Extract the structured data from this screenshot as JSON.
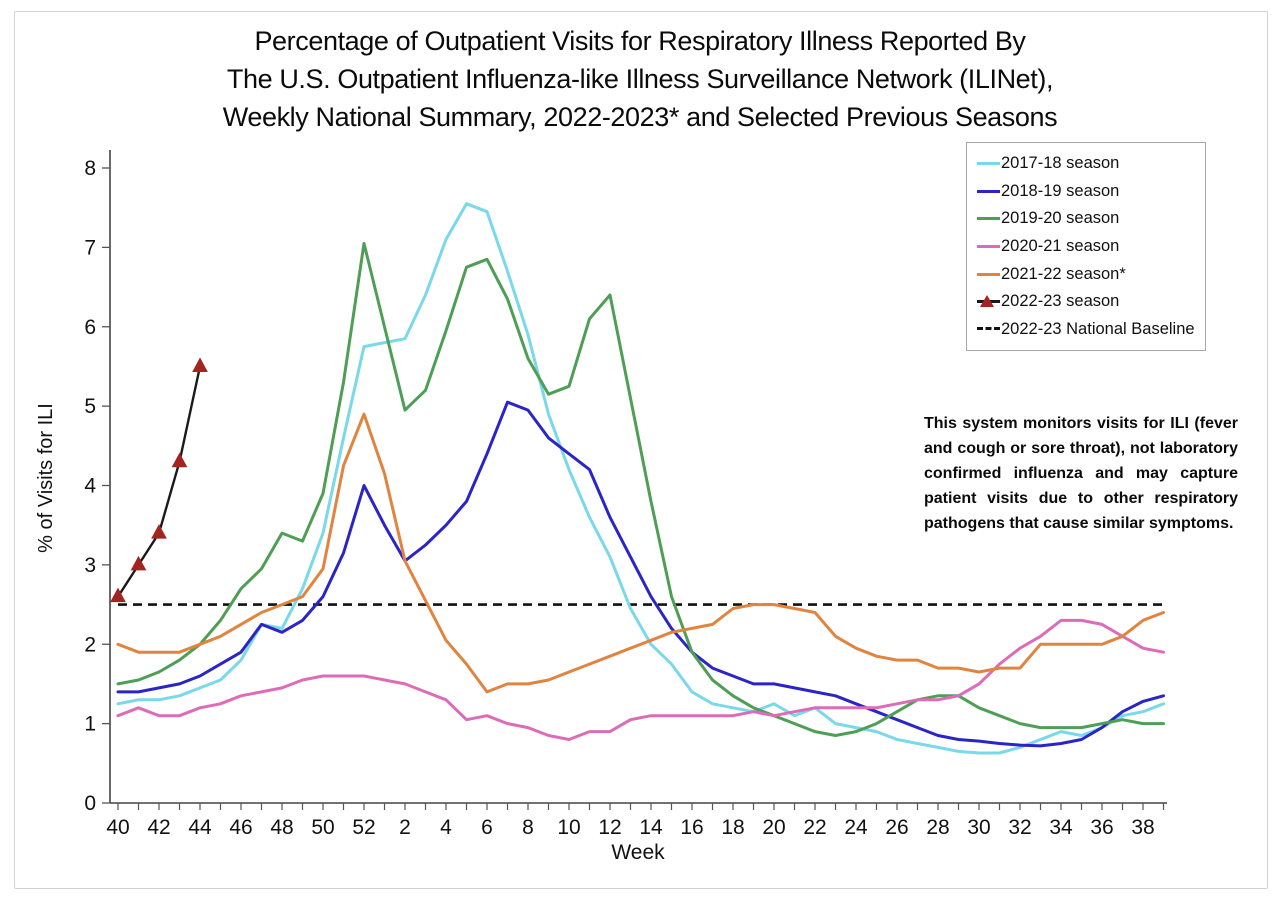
{
  "title": {
    "line1": "Percentage of Outpatient Visits for Respiratory Illness Reported By",
    "line2": "The U.S. Outpatient Influenza-like Illness Surveillance Network (ILINet),",
    "line3": "Weekly National Summary, 2022-2023* and Selected Previous Seasons"
  },
  "annotation": {
    "text": "This system monitors visits for ILI (fever and cough or sore throat), not laboratory confirmed influenza and may capture patient visits due to other respiratory pathogens that cause similar symptoms."
  },
  "chart_data": {
    "type": "line",
    "title": "Percentage of Outpatient Visits for Respiratory Illness Reported By The U.S. Outpatient Influenza-like Illness Surveillance Network (ILINet), Weekly National Summary, 2022-2023* and Selected Previous Seasons",
    "xlabel": "Week",
    "ylabel": "% of Visits for ILI",
    "ylim": [
      0,
      8
    ],
    "grid": false,
    "legend_position": "top-right",
    "y_ticks": [
      "0",
      "1",
      "2",
      "3",
      "4",
      "5",
      "6",
      "7",
      "8"
    ],
    "x_tick_labels": [
      "40",
      "42",
      "44",
      "46",
      "48",
      "50",
      "52",
      "2",
      "4",
      "6",
      "8",
      "10",
      "12",
      "14",
      "16",
      "18",
      "20",
      "22",
      "24",
      "26",
      "28",
      "30",
      "32",
      "34",
      "36",
      "38"
    ],
    "weeks": [
      40,
      41,
      42,
      43,
      44,
      45,
      46,
      47,
      48,
      49,
      50,
      51,
      52,
      1,
      2,
      3,
      4,
      5,
      6,
      7,
      8,
      9,
      10,
      11,
      12,
      13,
      14,
      15,
      16,
      17,
      18,
      19,
      20,
      21,
      22,
      23,
      24,
      25,
      26,
      27,
      28,
      29,
      30,
      31,
      32,
      33,
      34,
      35,
      36,
      37,
      38,
      39
    ],
    "baseline": {
      "label": "2022-23 National Baseline",
      "value": 2.5,
      "color": "#111111",
      "style": "dashed"
    },
    "series": [
      {
        "name": "2017-18 season",
        "color": "#79d9ea",
        "values": [
          1.25,
          1.3,
          1.3,
          1.35,
          1.45,
          1.55,
          1.8,
          2.25,
          2.2,
          2.7,
          3.4,
          4.6,
          5.75,
          5.8,
          5.85,
          6.4,
          7.1,
          7.55,
          7.45,
          6.7,
          5.9,
          4.9,
          4.2,
          3.6,
          3.1,
          2.45,
          2.0,
          1.75,
          1.4,
          1.25,
          1.2,
          1.15,
          1.25,
          1.1,
          1.2,
          1.0,
          0.95,
          0.9,
          0.8,
          0.75,
          0.7,
          0.65,
          0.63,
          0.63,
          0.7,
          0.8,
          0.9,
          0.85,
          0.95,
          1.1,
          1.15,
          1.25
        ]
      },
      {
        "name": "2018-19 season",
        "color": "#2b24c6",
        "values": [
          1.4,
          1.4,
          1.45,
          1.5,
          1.6,
          1.75,
          1.9,
          2.25,
          2.15,
          2.3,
          2.6,
          3.15,
          4.0,
          3.5,
          3.05,
          3.25,
          3.5,
          3.8,
          4.4,
          5.05,
          4.95,
          4.6,
          4.4,
          4.2,
          3.6,
          3.1,
          2.6,
          2.2,
          1.9,
          1.7,
          1.6,
          1.5,
          1.5,
          1.45,
          1.4,
          1.35,
          1.25,
          1.15,
          1.05,
          0.95,
          0.85,
          0.8,
          0.78,
          0.75,
          0.73,
          0.72,
          0.75,
          0.8,
          0.95,
          1.15,
          1.28,
          1.35
        ]
      },
      {
        "name": "2019-20 season",
        "color": "#4f9e55",
        "values": [
          1.5,
          1.55,
          1.65,
          1.8,
          2.0,
          2.3,
          2.7,
          2.95,
          3.4,
          3.3,
          3.9,
          5.3,
          7.05,
          6.0,
          4.95,
          5.2,
          5.95,
          6.75,
          6.85,
          6.35,
          5.6,
          5.15,
          5.25,
          6.1,
          6.4,
          5.1,
          3.8,
          2.6,
          1.9,
          1.55,
          1.35,
          1.2,
          1.1,
          1.0,
          0.9,
          0.85,
          0.9,
          1.0,
          1.15,
          1.3,
          1.35,
          1.35,
          1.2,
          1.1,
          1.0,
          0.95,
          0.95,
          0.95,
          1.0,
          1.05,
          1.0,
          1.0
        ]
      },
      {
        "name": "2020-21 season",
        "color": "#dd6cb8",
        "values": [
          1.1,
          1.2,
          1.1,
          1.1,
          1.2,
          1.25,
          1.35,
          1.4,
          1.45,
          1.55,
          1.6,
          1.6,
          1.6,
          1.55,
          1.5,
          1.4,
          1.3,
          1.05,
          1.1,
          1.0,
          0.95,
          0.85,
          0.8,
          0.9,
          0.9,
          1.05,
          1.1,
          1.1,
          1.1,
          1.1,
          1.1,
          1.15,
          1.1,
          1.15,
          1.2,
          1.2,
          1.2,
          1.2,
          1.25,
          1.3,
          1.3,
          1.35,
          1.5,
          1.75,
          1.95,
          2.1,
          2.3,
          2.3,
          2.25,
          2.1,
          1.95,
          1.9
        ]
      },
      {
        "name": "2021-22 season*",
        "color": "#e08440",
        "values": [
          2.0,
          1.9,
          1.9,
          1.9,
          2.0,
          2.1,
          2.25,
          2.4,
          2.5,
          2.6,
          2.95,
          4.25,
          4.9,
          4.15,
          3.05,
          2.55,
          2.05,
          1.75,
          1.4,
          1.5,
          1.5,
          1.55,
          1.65,
          1.75,
          1.85,
          1.95,
          2.05,
          2.15,
          2.2,
          2.25,
          2.45,
          2.5,
          2.5,
          2.45,
          2.4,
          2.1,
          1.95,
          1.85,
          1.8,
          1.8,
          1.7,
          1.7,
          1.65,
          1.7,
          1.7,
          2.0,
          2.0,
          2.0,
          2.0,
          2.1,
          2.3,
          2.4
        ]
      },
      {
        "name": "2022-23 season",
        "color": "#1a1a1a",
        "marker": "triangle",
        "marker_color": "#a32420",
        "values": [
          2.6,
          3.0,
          3.4,
          4.3,
          5.5,
          null,
          null,
          null,
          null,
          null,
          null,
          null,
          null,
          null,
          null,
          null,
          null,
          null,
          null,
          null,
          null,
          null,
          null,
          null,
          null,
          null,
          null,
          null,
          null,
          null,
          null,
          null,
          null,
          null,
          null,
          null,
          null,
          null,
          null,
          null,
          null,
          null,
          null,
          null,
          null,
          null,
          null,
          null,
          null,
          null,
          null,
          null
        ]
      }
    ],
    "legend": [
      {
        "label": "2017-18 season",
        "swatch": "line",
        "color": "#79d9ea"
      },
      {
        "label": "2018-19 season",
        "swatch": "line",
        "color": "#2b24c6"
      },
      {
        "label": "2019-20 season",
        "swatch": "line",
        "color": "#4f9e55"
      },
      {
        "label": "2020-21 season",
        "swatch": "line",
        "color": "#dd6cb8"
      },
      {
        "label": "2021-22 season*",
        "swatch": "line",
        "color": "#e08440"
      },
      {
        "label": "2022-23 season",
        "swatch": "triangle-line",
        "color": "#1a1a1a"
      },
      {
        "label": "2022-23 National Baseline",
        "swatch": "dashed",
        "color": "#111111"
      }
    ]
  }
}
